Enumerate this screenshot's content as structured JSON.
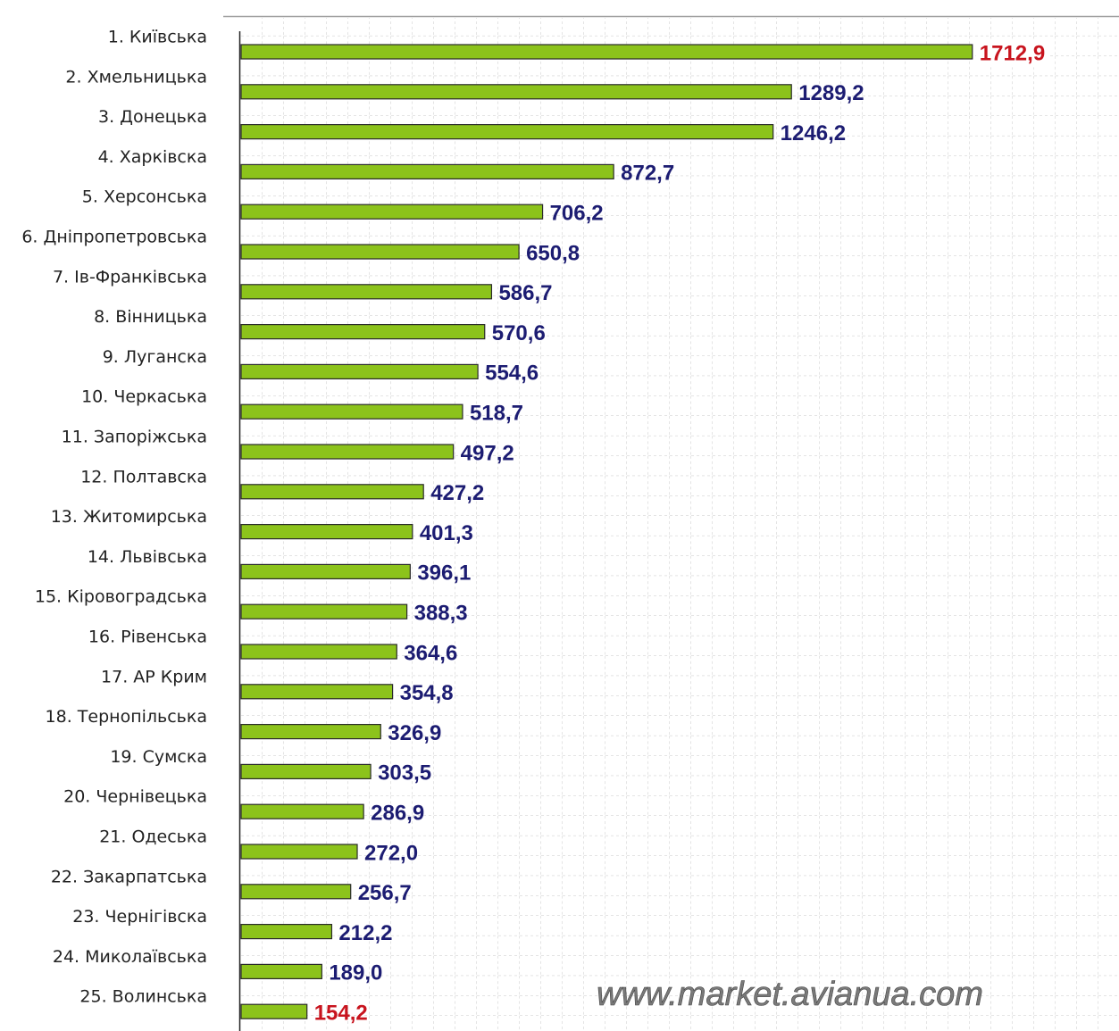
{
  "chart_data": {
    "type": "bar",
    "orientation": "horizontal",
    "categories": [
      "1. Київська",
      "2. Хмельницька",
      "3. Донецька",
      "4. Харківска",
      "5. Херсонська",
      "6. Дніпропетровська",
      "7. Ів-Франківська",
      "8. Вінницька",
      "9. Луганска",
      "10. Черкаська",
      "11. Запоріжська",
      "12. Полтавска",
      "13. Житомирська",
      "14. Львівська",
      "15. Кіровоградська",
      "16. Рівенська",
      "17. АР Крим",
      "18. Тернопільська",
      "19. Сумска",
      "20. Чернівецька",
      "21. Одеська",
      "22. Закарпатська",
      "23. Чернігівска",
      "24. Миколаївська",
      "25. Волинська"
    ],
    "values": [
      1712.9,
      1289.2,
      1246.2,
      872.7,
      706.2,
      650.8,
      586.7,
      570.6,
      554.6,
      518.7,
      497.2,
      427.2,
      401.3,
      396.1,
      388.3,
      364.6,
      354.8,
      326.9,
      303.5,
      286.9,
      272.0,
      256.7,
      212.2,
      189.0,
      154.2
    ],
    "value_labels": [
      "1712,9",
      "1289,2",
      "1246,2",
      "872,7",
      "706,2",
      "650,8",
      "586,7",
      "570,6",
      "554,6",
      "518,7",
      "497,2",
      "427,2",
      "401,3",
      "396,1",
      "388,3",
      "364,6",
      "354,8",
      "326,9",
      "303,5",
      "286,9",
      "272,0",
      "256,7",
      "212,2",
      "189,0",
      "154,2"
    ],
    "value_label_colors": [
      "#c8141e",
      "#1c1c72",
      "#1c1c72",
      "#1c1c72",
      "#1c1c72",
      "#1c1c72",
      "#1c1c72",
      "#1c1c72",
      "#1c1c72",
      "#1c1c72",
      "#1c1c72",
      "#1c1c72",
      "#1c1c72",
      "#1c1c72",
      "#1c1c72",
      "#1c1c72",
      "#1c1c72",
      "#1c1c72",
      "#1c1c72",
      "#1c1c72",
      "#1c1c72",
      "#1c1c72",
      "#1c1c72",
      "#1c1c72",
      "#c8141e"
    ],
    "color": "#8cc31b",
    "xlim": [
      0,
      2000
    ],
    "grid": true,
    "annotation": "www.market.avianua.com"
  }
}
